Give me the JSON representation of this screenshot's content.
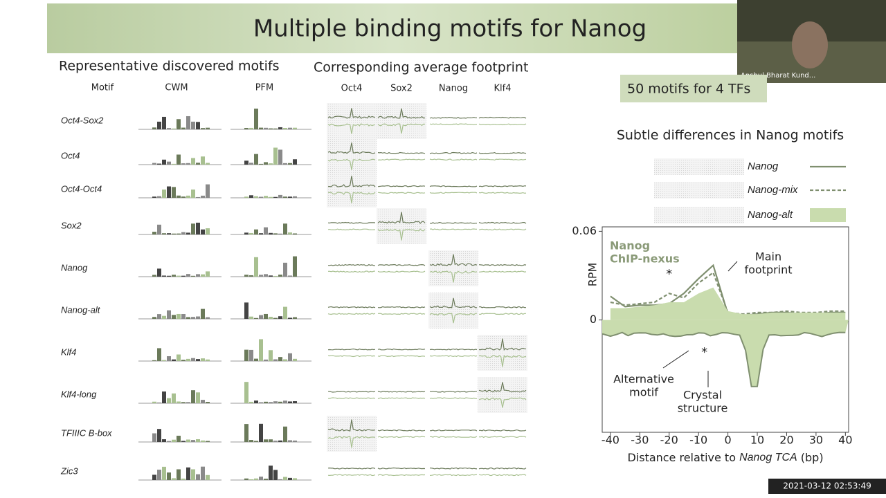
{
  "header": {
    "title": "Multiple binding motifs for Nanog"
  },
  "webcam": {
    "name": "Anshul Bharat Kund..."
  },
  "left": {
    "motifs_heading": "Representative discovered motifs",
    "footprint_heading": "Corresponding average footprint",
    "columns": [
      "Motif",
      "CWM",
      "PFM"
    ],
    "footprint_columns": [
      "Oct4",
      "Sox2",
      "Nanog",
      "Klf4"
    ],
    "rows": [
      "Oct4-Sox2",
      "Oct4",
      "Oct4-Oct4",
      "Sox2",
      "Nanog",
      "Nanog-alt",
      "Klf4",
      "Klf4-long",
      "TFIIIC B-box",
      "Zic3"
    ]
  },
  "badge": "50 motifs for 4 TFs",
  "chart_data": {
    "type": "line",
    "title": "Subtle differences in Nanog motifs",
    "xlabel": [
      "Distance relative to ",
      "Nanog TCA",
      " (bp)"
    ],
    "ylabel": "RPM",
    "x": [
      -40,
      -35,
      -30,
      -25,
      -20,
      -15,
      -10,
      -5,
      0,
      5,
      10,
      15,
      20,
      25,
      30,
      35,
      40
    ],
    "series": [
      {
        "name": "Nanog",
        "color": "#7f8f6f",
        "style": "solid",
        "values": [
          0.016,
          0.009,
          0.01,
          0.01,
          0.011,
          0.018,
          0.028,
          0.037,
          0.004,
          0.003,
          0.004,
          0.005,
          0.005,
          0.004,
          0.004,
          0.005,
          0.005
        ]
      },
      {
        "name": "Nanog-mix",
        "color": "#7f8f6f",
        "style": "dashed",
        "values": [
          0.012,
          0.01,
          0.011,
          0.012,
          0.018,
          0.015,
          0.025,
          0.032,
          0.005,
          0.004,
          0.005,
          0.005,
          0.006,
          0.005,
          0.005,
          0.006,
          0.006
        ]
      },
      {
        "name": "Nanog-alt",
        "color": "#c9dcae",
        "style": "area",
        "values": [
          0.008,
          0.008,
          0.009,
          0.01,
          0.012,
          0.012,
          0.018,
          0.022,
          0.006,
          0.004,
          0.004,
          0.005,
          0.005,
          0.005,
          0.005,
          0.005,
          0.005
        ]
      }
    ],
    "xlim": [
      -42.8,
      41.1
    ],
    "ylim": [
      -0.076,
      0.063
    ],
    "xticks": [
      -40,
      -30,
      -20,
      -10,
      0,
      10,
      20,
      30,
      40
    ],
    "yticks": [
      0,
      0.06
    ],
    "annotations": {
      "chip": [
        "Nanog",
        "ChIP-nexus"
      ],
      "main": [
        "Main",
        "footprint"
      ],
      "alt": [
        "Alternative",
        "motif"
      ],
      "crystal": [
        "Crystal",
        "structure"
      ],
      "star_top": "*",
      "star_bottom": "*"
    }
  },
  "timestamp": "2021-03-12 02:53:49"
}
